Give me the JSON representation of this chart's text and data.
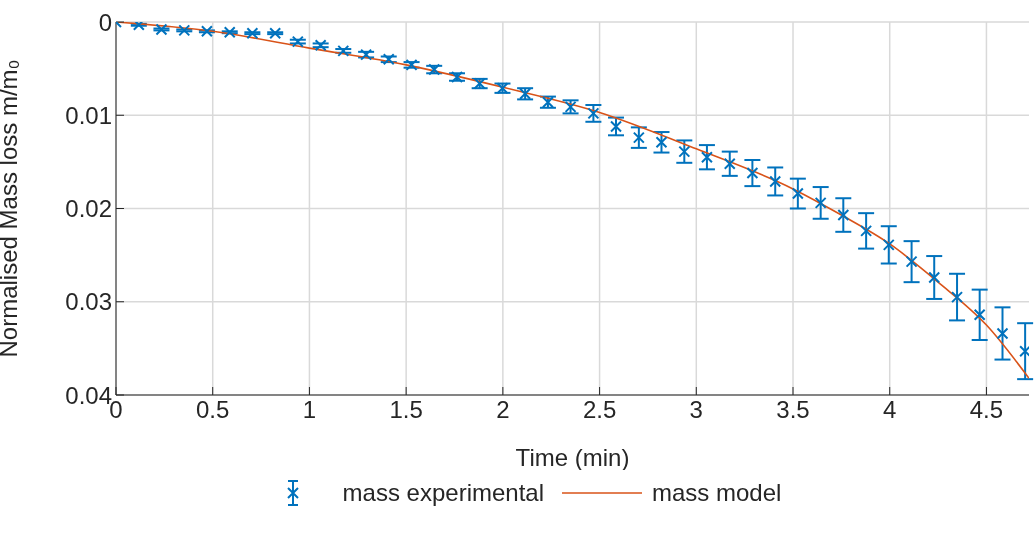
{
  "chart_data": {
    "type": "scatter",
    "xlabel": "Time (min)",
    "ylabel": "Normalised Mass loss m/m₀",
    "xlim": [
      0,
      4.72
    ],
    "xticks": [
      0,
      0.5,
      1,
      1.5,
      2,
      2.5,
      3,
      3.5,
      4,
      4.5
    ],
    "ylim": [
      0.04,
      0
    ],
    "yticks": [
      0,
      0.01,
      0.02,
      0.03,
      0.04
    ],
    "grid": true,
    "legend": "bottom",
    "marker": "cross",
    "series": [
      {
        "name": "mass experimental",
        "color": "#0072bd",
        "x": [
          0,
          0.118,
          0.235,
          0.353,
          0.47,
          0.588,
          0.705,
          0.823,
          0.94,
          1.058,
          1.175,
          1.293,
          1.41,
          1.528,
          1.645,
          1.763,
          1.88,
          1.998,
          2.115,
          2.233,
          2.35,
          2.468,
          2.585,
          2.703,
          2.82,
          2.938,
          3.055,
          3.173,
          3.29,
          3.408,
          3.525,
          3.643,
          3.76,
          3.878,
          3.995,
          4.113,
          4.23,
          4.348,
          4.465,
          4.583,
          4.7
        ],
        "values": [
          0,
          0.0003,
          0.0008,
          0.0009,
          0.001,
          0.0011,
          0.0012,
          0.0012,
          0.0021,
          0.0025,
          0.0031,
          0.0035,
          0.004,
          0.0046,
          0.0051,
          0.0059,
          0.0066,
          0.0071,
          0.0077,
          0.0086,
          0.0091,
          0.0098,
          0.0112,
          0.0124,
          0.0129,
          0.0139,
          0.0145,
          0.0152,
          0.0162,
          0.0171,
          0.0184,
          0.0194,
          0.0207,
          0.0224,
          0.0239,
          0.0257,
          0.0274,
          0.0295,
          0.0314,
          0.0334,
          0.0353
        ],
        "errors": [
          0,
          0.0001,
          0.0001,
          0.0001,
          0.0001,
          0.0001,
          0.0001,
          0.0001,
          0.0002,
          0.0002,
          0.0002,
          0.0003,
          0.0003,
          0.0003,
          0.0004,
          0.0004,
          0.0005,
          0.0005,
          0.0006,
          0.0006,
          0.0007,
          0.0009,
          0.00095,
          0.0011,
          0.0011,
          0.0012,
          0.0013,
          0.0013,
          0.0014,
          0.0015,
          0.0016,
          0.0017,
          0.0018,
          0.0019,
          0.002,
          0.0022,
          0.0023,
          0.0025,
          0.0027,
          0.0028,
          0.003
        ]
      },
      {
        "name": "mass model",
        "type": "line",
        "marker": "none",
        "color": "#d95319",
        "x": [
          0,
          0.5,
          1,
          1.5,
          2,
          2.5,
          3,
          3.5,
          3.75,
          4,
          4.25,
          4.5,
          4.72
        ],
        "values": [
          0,
          0.001,
          0.0028,
          0.0046,
          0.007,
          0.0097,
          0.0136,
          0.0179,
          0.0207,
          0.0238,
          0.0279,
          0.0325,
          0.0382
        ]
      }
    ]
  }
}
